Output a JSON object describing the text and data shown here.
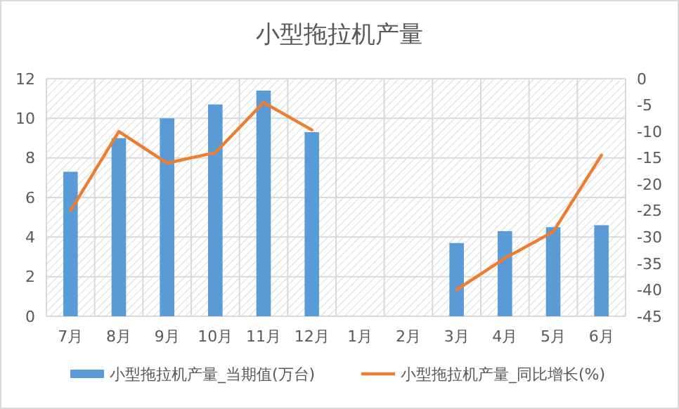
{
  "chart_data": {
    "type": "bar",
    "title": "小型拖拉机产量",
    "categories": [
      "7月",
      "8月",
      "9月",
      "10月",
      "11月",
      "12月",
      "1月",
      "2月",
      "3月",
      "4月",
      "5月",
      "6月"
    ],
    "series": [
      {
        "name": "小型拖拉机产量_当期值(万台)",
        "color": "#5b9bd5",
        "values": [
          7.3,
          9.0,
          10.0,
          10.7,
          11.4,
          9.3,
          null,
          null,
          3.7,
          4.3,
          4.5,
          4.6
        ]
      },
      {
        "name": "小型拖拉机产量_同比增长(%)",
        "type": "line",
        "axis": "y2",
        "color": "#ed7d31",
        "values": [
          -25,
          -10,
          -16,
          -14,
          -4.5,
          -9.7,
          null,
          null,
          -40,
          -34,
          -29,
          -14.5
        ]
      }
    ],
    "ylim": [
      0,
      12
    ],
    "yticks": [
      0,
      2,
      4,
      6,
      8,
      10,
      12
    ],
    "y2lim": [
      -45,
      0
    ],
    "y2ticks": [
      -45,
      -40,
      -35,
      -30,
      -25,
      -20,
      -15,
      -10,
      -5,
      0
    ],
    "grid": true,
    "legend": "bottom",
    "marker": "none",
    "line_style": "solid"
  }
}
